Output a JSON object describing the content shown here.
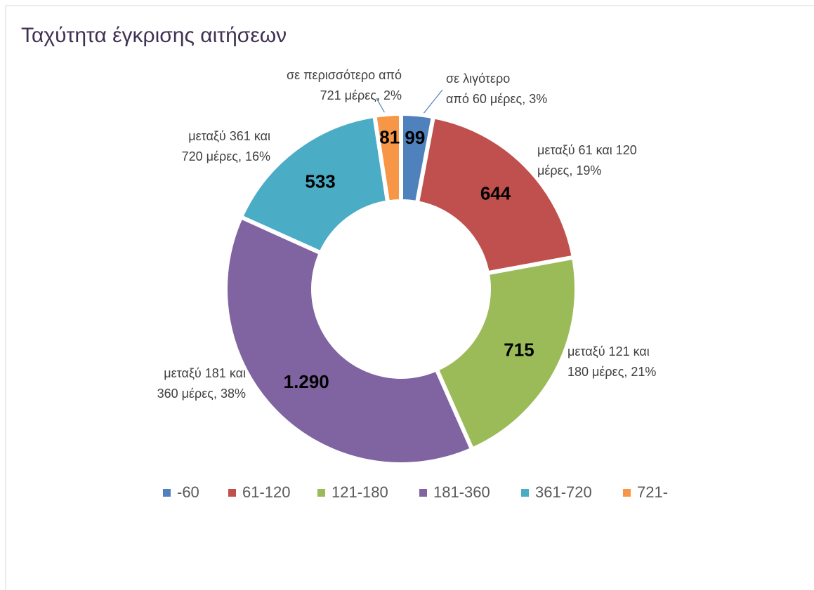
{
  "chart_data": {
    "type": "donut",
    "title": "Ταχύτητα έγκρισης αιτήσεων",
    "categories": [
      "-60",
      "61-120",
      "121-180",
      "181-360",
      "361-720",
      "721-"
    ],
    "values": [
      99,
      644,
      715,
      1290,
      533,
      81
    ],
    "value_labels": [
      "99",
      "644",
      "715",
      "1.290",
      "533",
      "81"
    ],
    "colors": [
      "#4f81bd",
      "#c0504d",
      "#9bbb59",
      "#8064a2",
      "#4bacc6",
      "#f79646"
    ],
    "slice_labels": [
      [
        "σε λιγότερο",
        "από 60 μέρες, 3%"
      ],
      [
        "μεταξύ 61 και 120",
        "μέρες, 19%"
      ],
      [
        "μεταξύ 121 και",
        "180 μέρες, 21%"
      ],
      [
        "μεταξύ 181 και",
        "360 μέρες, 38%"
      ],
      [
        "μεταξύ 361 και",
        "720 μέρες, 16%"
      ],
      [
        "σε περισσότερο από",
        "721 μέρες, 2%"
      ]
    ],
    "legend": "bottom"
  }
}
